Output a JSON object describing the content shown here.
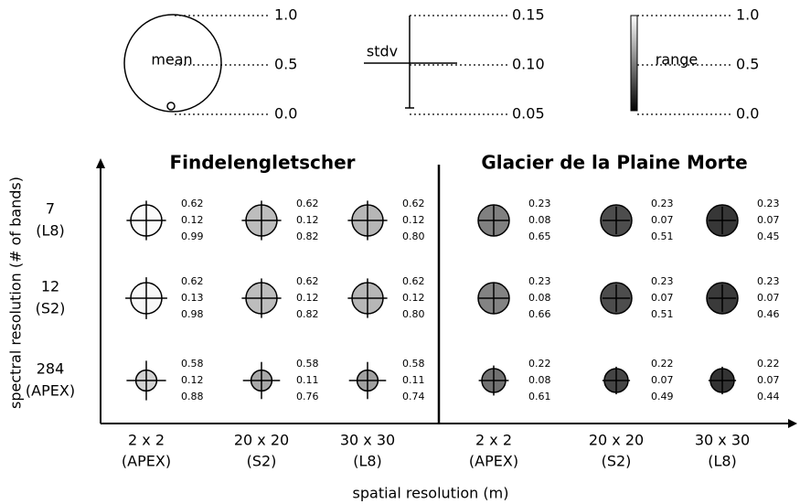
{
  "legend": {
    "mean": {
      "label": "mean",
      "ticks": [
        {
          "value": 1,
          "label": "1.0"
        },
        {
          "value": 0.5,
          "label": "0.5"
        },
        {
          "value": 0,
          "label": "0.0"
        }
      ]
    },
    "stdv": {
      "label": "stdv",
      "ticks": [
        {
          "value": 0.15,
          "label": "0.15"
        },
        {
          "value": 0.1,
          "label": "0.10"
        },
        {
          "value": 0.05,
          "label": "0.05"
        }
      ]
    },
    "range": {
      "label": "range",
      "ticks": [
        {
          "value": 1,
          "label": "1.0"
        },
        {
          "value": 0.5,
          "label": "0.5"
        },
        {
          "value": 0,
          "label": "0.0"
        }
      ]
    }
  },
  "rows": [
    [
      "7",
      "(L8)"
    ],
    [
      "12",
      "(S2)"
    ],
    [
      "284",
      "(APEX)"
    ]
  ],
  "columns": [
    [
      "2 x 2",
      "(APEX)"
    ],
    [
      "20 x 20",
      "(S2)"
    ],
    [
      "30 x 30",
      "(L8)"
    ],
    [
      "2 x 2",
      "(APEX)"
    ],
    [
      "20 x 20",
      "(S2)"
    ],
    [
      "30 x 30",
      "(L8)"
    ]
  ],
  "x_label": "spatial resolution (m)",
  "y_label": "spectral resolution (# of bands)",
  "panels": [
    {
      "title": "Findelengletscher",
      "cells": [
        [
          {
            "values": [
              0.62,
              0.12,
              0.99
            ],
            "value_labels": [
              "0.62",
              "0.12",
              "0.99"
            ]
          },
          {
            "values": [
              0.62,
              0.12,
              0.82
            ],
            "value_labels": [
              "0.62",
              "0.12",
              "0.82"
            ]
          },
          {
            "values": [
              0.62,
              0.12,
              0.8
            ],
            "value_labels": [
              "0.62",
              "0.12",
              "0.80"
            ]
          }
        ],
        [
          {
            "values": [
              0.62,
              0.13,
              0.98
            ],
            "value_labels": [
              "0.62",
              "0.13",
              "0.98"
            ]
          },
          {
            "values": [
              0.62,
              0.12,
              0.82
            ],
            "value_labels": [
              "0.62",
              "0.12",
              "0.82"
            ]
          },
          {
            "values": [
              0.62,
              0.12,
              0.8
            ],
            "value_labels": [
              "0.62",
              "0.12",
              "0.80"
            ]
          }
        ],
        [
          {
            "values": [
              0.58,
              0.12,
              0.88
            ],
            "value_labels": [
              "0.58",
              "0.12",
              "0.88"
            ]
          },
          {
            "values": [
              0.58,
              0.11,
              0.76
            ],
            "value_labels": [
              "0.58",
              "0.11",
              "0.76"
            ]
          },
          {
            "values": [
              0.58,
              0.11,
              0.74
            ],
            "value_labels": [
              "0.58",
              "0.11",
              "0.74"
            ]
          }
        ]
      ]
    },
    {
      "title": "Glacier de la Plaine Morte",
      "cells": [
        [
          {
            "values": [
              0.23,
              0.08,
              0.65
            ],
            "value_labels": [
              "0.23",
              "0.08",
              "0.65"
            ]
          },
          {
            "values": [
              0.23,
              0.07,
              0.51
            ],
            "value_labels": [
              "0.23",
              "0.07",
              "0.51"
            ]
          },
          {
            "values": [
              0.23,
              0.07,
              0.45
            ],
            "value_labels": [
              "0.23",
              "0.07",
              "0.45"
            ]
          }
        ],
        [
          {
            "values": [
              0.23,
              0.08,
              0.66
            ],
            "value_labels": [
              "0.23",
              "0.08",
              "0.66"
            ]
          },
          {
            "values": [
              0.23,
              0.07,
              0.51
            ],
            "value_labels": [
              "0.23",
              "0.07",
              "0.51"
            ]
          },
          {
            "values": [
              0.23,
              0.07,
              0.46
            ],
            "value_labels": [
              "0.23",
              "0.07",
              "0.46"
            ]
          }
        ],
        [
          {
            "values": [
              0.22,
              0.08,
              0.61
            ],
            "value_labels": [
              "0.22",
              "0.08",
              "0.61"
            ]
          },
          {
            "values": [
              0.22,
              0.07,
              0.49
            ],
            "value_labels": [
              "0.22",
              "0.07",
              "0.49"
            ]
          },
          {
            "values": [
              0.22,
              0.07,
              0.44
            ],
            "value_labels": [
              "0.22",
              "0.07",
              "0.44"
            ]
          }
        ]
      ]
    }
  ]
}
